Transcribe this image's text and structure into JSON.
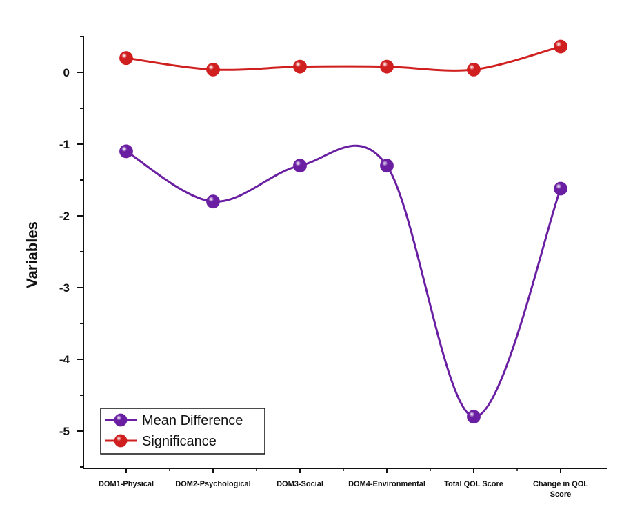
{
  "chart_data": {
    "type": "line",
    "categories": [
      "DOM1-Physical",
      "DOM2-Psychological",
      "DOM3-Social",
      "DOM4-Environmental",
      "Total QOL Score",
      "Change in QOL Score"
    ],
    "category_lines": [
      [
        "DOM1-Physical"
      ],
      [
        "DOM2-Psychological"
      ],
      [
        "DOM3-Social"
      ],
      [
        "DOM4-Environmental"
      ],
      [
        "Total QOL Score"
      ],
      [
        "Change in QOL",
        "Score"
      ]
    ],
    "series": [
      {
        "name": "Mean Difference",
        "color": "#6a1fa3",
        "values": [
          -1.1,
          -1.8,
          -1.3,
          -1.3,
          -4.8,
          -1.62
        ]
      },
      {
        "name": "Significance",
        "color": "#d01f1f",
        "values": [
          0.2,
          0.04,
          0.08,
          0.08,
          0.04,
          0.36
        ]
      }
    ],
    "title": "",
    "xlabel": "",
    "ylabel": "Variables",
    "ylim": [
      -5.5,
      0.5
    ],
    "yticks": [
      0,
      -1,
      -2,
      -3,
      -4,
      -5
    ],
    "ytick_labels": [
      "0",
      "-1",
      "-2",
      "-3",
      "-4",
      "-5"
    ],
    "smooth": true,
    "grid": false,
    "legend_position": "bottom-left"
  }
}
